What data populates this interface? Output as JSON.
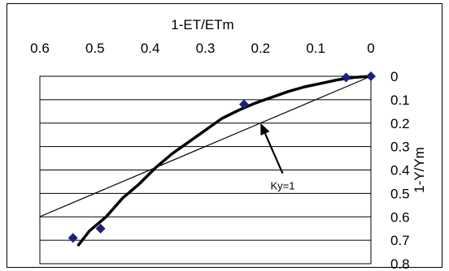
{
  "chart_data": {
    "type": "scatter",
    "xlabel": "1-ET/ETm",
    "ylabel": "1-Y/Ym",
    "xlim": [
      0.6,
      0
    ],
    "ylim": [
      0,
      0.8
    ],
    "x_axis_position": "top",
    "y_axis_position": "right",
    "x_ticks": [
      "0.6",
      "0.5",
      "0.4",
      "0.3",
      "0.2",
      "0.1",
      "0"
    ],
    "y_ticks": [
      "0",
      "0.1",
      "0.2",
      "0.3",
      "0.4",
      "0.5",
      "0.6",
      "0.7",
      "0.8"
    ],
    "grid": "horizontal",
    "points": {
      "x": [
        0.54,
        0.49,
        0.23,
        0.045,
        0.0
      ],
      "y": [
        0.69,
        0.65,
        0.12,
        0.005,
        0.0
      ],
      "marker": "diamond",
      "color": "#1f1f7a"
    },
    "curve": {
      "x": [
        0.53,
        0.51,
        0.48,
        0.45,
        0.42,
        0.39,
        0.36,
        0.33,
        0.3,
        0.27,
        0.24,
        0.21,
        0.18,
        0.15,
        0.12,
        0.09,
        0.06,
        0.03,
        0.0
      ],
      "y": [
        0.72,
        0.66,
        0.6,
        0.52,
        0.46,
        0.39,
        0.33,
        0.28,
        0.23,
        0.18,
        0.145,
        0.115,
        0.09,
        0.065,
        0.045,
        0.03,
        0.015,
        0.005,
        0.0
      ],
      "color": "#000000"
    },
    "reference_line": {
      "x": [
        0.6,
        0.0
      ],
      "y": [
        0.6,
        0.0
      ],
      "color": "#000000"
    },
    "annotation": {
      "text": "Ky=1",
      "target": [
        0.2,
        0.2
      ],
      "label_at": [
        0.16,
        0.47
      ]
    }
  }
}
